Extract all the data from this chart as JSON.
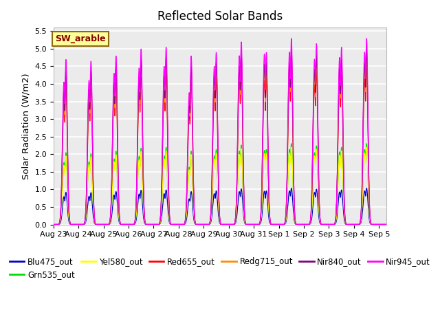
{
  "title": "Reflected Solar Bands",
  "ylabel": "Solar Radiation (W/m2)",
  "annotation": "SW_arable",
  "annotation_color": "#8B0000",
  "annotation_bg": "#FFFF99",
  "annotation_border": "#8B6914",
  "ylim": [
    0,
    5.6
  ],
  "yticks": [
    0.0,
    0.5,
    1.0,
    1.5,
    2.0,
    2.5,
    3.0,
    3.5,
    4.0,
    4.5,
    5.0,
    5.5
  ],
  "background_color": "#EBEBEB",
  "grid_color": "#FFFFFF",
  "bands": [
    {
      "name": "Blu475_out",
      "color": "#0000CC",
      "peak_scale": 0.195
    },
    {
      "name": "Grn535_out",
      "color": "#00DD00",
      "peak_scale": 0.435
    },
    {
      "name": "Yel580_out",
      "color": "#FFFF00",
      "peak_scale": 0.415
    },
    {
      "name": "Red655_out",
      "color": "#FF0000",
      "peak_scale": 0.845
    },
    {
      "name": "Redg715_out",
      "color": "#FF8C00",
      "peak_scale": 0.91
    },
    {
      "name": "Nir840_out",
      "color": "#800080",
      "peak_scale": 0.94
    },
    {
      "name": "Nir945_out",
      "color": "#FF00FF",
      "peak_scale": 1.0
    }
  ],
  "xtick_labels": [
    "Aug 23",
    "Aug 24",
    "Aug 25",
    "Aug 26",
    "Aug 27",
    "Aug 28",
    "Aug 29",
    "Aug 30",
    "Aug 31",
    "Sep 1",
    "Sep 2",
    "Sep 3",
    "Sep 4",
    "Sep 5"
  ],
  "num_days": 13,
  "points_per_day": 144,
  "day_peaks": [
    4.7,
    4.65,
    4.8,
    5.0,
    5.05,
    4.8,
    4.9,
    5.2,
    4.9,
    5.3,
    5.15,
    5.05,
    5.3,
    0.0
  ],
  "day_sec_peaks": [
    4.05,
    4.1,
    4.3,
    4.45,
    4.5,
    3.75,
    4.5,
    4.8,
    4.85,
    4.9,
    4.7,
    4.75,
    4.9,
    0.0
  ],
  "title_fontsize": 12,
  "legend_fontsize": 8.5,
  "tick_fontsize": 8
}
